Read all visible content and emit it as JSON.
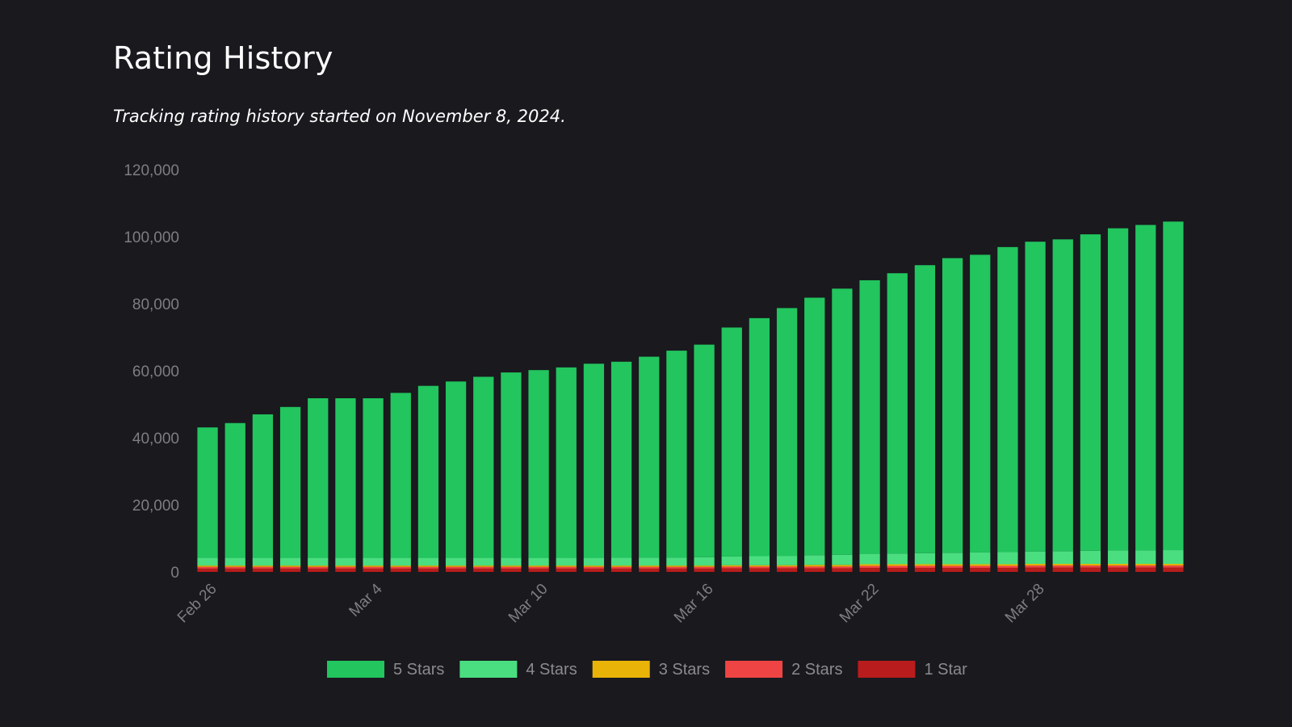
{
  "header": {
    "title": "Rating History",
    "subtitle": "Tracking rating history started on November 8, 2024."
  },
  "chart_data": {
    "type": "bar",
    "stacked": true,
    "x_tick_labels": [
      "Feb 26",
      "Mar 4",
      "Mar 10",
      "Mar 16",
      "Mar 22",
      "Mar 28"
    ],
    "x_tick_label_every": 6,
    "y_ticks": [
      0,
      20000,
      40000,
      60000,
      80000,
      100000,
      120000
    ],
    "y_tick_labels": [
      "0",
      "20,000",
      "40,000",
      "60,000",
      "80,000",
      "100,000",
      "120,000"
    ],
    "ylim": [
      0,
      120000
    ],
    "grid": false,
    "legend_position": "bottom",
    "series": [
      {
        "name": "1 Star",
        "color": "#b91c1c",
        "values": [
          1000,
          1000,
          1000,
          1000,
          1000,
          1000,
          1000,
          1000,
          1000,
          1000,
          1000,
          1000,
          1000,
          1000,
          1000,
          1000,
          1000,
          1000,
          1000,
          1100,
          1100,
          1100,
          1100,
          1100,
          1200,
          1200,
          1200,
          1200,
          1200,
          1200,
          1300,
          1300,
          1300,
          1300,
          1300,
          1300
        ]
      },
      {
        "name": "2 Stars",
        "color": "#ef4444",
        "values": [
          500,
          500,
          500,
          500,
          500,
          500,
          500,
          500,
          500,
          500,
          500,
          500,
          500,
          500,
          500,
          500,
          500,
          500,
          500,
          500,
          500,
          500,
          500,
          500,
          600,
          600,
          600,
          600,
          600,
          600,
          600,
          600,
          600,
          600,
          600,
          600
        ]
      },
      {
        "name": "3 Stars",
        "color": "#eab308",
        "values": [
          400,
          400,
          400,
          400,
          400,
          400,
          400,
          400,
          400,
          400,
          400,
          400,
          400,
          400,
          400,
          400,
          400,
          400,
          400,
          400,
          400,
          400,
          500,
          500,
          500,
          500,
          500,
          500,
          500,
          500,
          500,
          500,
          500,
          500,
          500,
          500
        ]
      },
      {
        "name": "4 Stars",
        "color": "#4ade80",
        "values": [
          2300,
          2300,
          2300,
          2300,
          2300,
          2300,
          2300,
          2300,
          2300,
          2300,
          2300,
          2300,
          2300,
          2300,
          2300,
          2400,
          2400,
          2400,
          2500,
          2600,
          2700,
          2800,
          2900,
          3000,
          3100,
          3200,
          3300,
          3400,
          3500,
          3600,
          3700,
          3800,
          3900,
          4000,
          4000,
          4100
        ]
      },
      {
        "name": "5 Stars",
        "color": "#22c55e",
        "values": [
          38900,
          40200,
          42800,
          45000,
          47600,
          47600,
          47600,
          49200,
          51300,
          52600,
          54000,
          55300,
          56000,
          56800,
          57900,
          58400,
          59900,
          61700,
          63400,
          68300,
          71000,
          73900,
          76800,
          79400,
          81600,
          83600,
          85900,
          87900,
          88800,
          91000,
          92400,
          93000,
          94400,
          96100,
          97100,
          98000
        ]
      }
    ]
  }
}
